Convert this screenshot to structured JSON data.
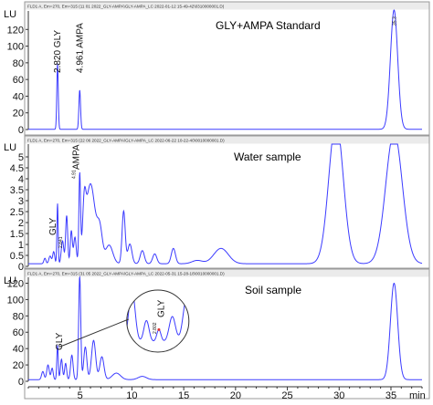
{
  "chart_data": [
    {
      "type": "line",
      "header": "FLD1 A, Em=270, Em=315 (11 01 2022_GLY-AMPA\\GLY-AMPA_LC 2022-01-12 15-49-42\\0310000001.D)",
      "title": "GLY+AMPA Standard",
      "ylabel": "LU",
      "yticks": [
        0,
        20,
        40,
        60,
        80,
        100,
        120
      ],
      "ylim": [
        0,
        140
      ],
      "xlim": [
        0,
        38
      ],
      "peaks": [
        {
          "t": 2.82,
          "h": 79,
          "w": 0.07
        },
        {
          "t": 4.961,
          "h": 47,
          "w": 0.08
        },
        {
          "t": 35.3,
          "h": 143,
          "w": 0.35
        }
      ],
      "peak_labels": [
        {
          "text": "2.820 GLY",
          "t": 2.82
        },
        {
          "text": "4.961 AMPA",
          "t": 4.961
        }
      ],
      "apex_label": "35.3"
    },
    {
      "type": "line",
      "header": "FLD1 A, Em=270, Em=315 (22 06 2022_GLY-AMPA\\GLY-AMPA_LC 2022-06-22 10-22-40\\0010000001.D)",
      "title": "Water sample",
      "ylabel": "LU",
      "yticks": [
        0,
        0.5,
        1,
        1.5,
        2,
        2.5,
        3,
        3.5,
        4,
        4.5,
        5
      ],
      "ylim": [
        0,
        5.5
      ],
      "xlim": [
        0,
        38
      ],
      "peaks": [
        {
          "t": 1.6,
          "h": 0.25,
          "w": 0.1
        },
        {
          "t": 2.1,
          "h": 0.35,
          "w": 0.12
        },
        {
          "t": 2.45,
          "h": 0.55,
          "w": 0.1
        },
        {
          "t": 2.82,
          "h": 2.75,
          "w": 0.06
        },
        {
          "t": 3.3,
          "h": 1.05,
          "w": 0.12
        },
        {
          "t": 3.7,
          "h": 2.2,
          "w": 0.1
        },
        {
          "t": 4.15,
          "h": 1.5,
          "w": 0.1
        },
        {
          "t": 4.5,
          "h": 1.2,
          "w": 0.12
        },
        {
          "t": 4.96,
          "h": 3.9,
          "w": 0.08
        },
        {
          "t": 5.4,
          "h": 1.9,
          "w": 0.15
        },
        {
          "t": 6.0,
          "h": 3.65,
          "w": 0.45
        },
        {
          "t": 6.9,
          "h": 1.4,
          "w": 0.25
        },
        {
          "t": 7.8,
          "h": 0.85,
          "w": 0.35
        },
        {
          "t": 9.2,
          "h": 2.4,
          "w": 0.15
        },
        {
          "t": 9.8,
          "h": 0.9,
          "w": 0.2
        },
        {
          "t": 11.0,
          "h": 0.6,
          "w": 0.2
        },
        {
          "t": 12.2,
          "h": 0.45,
          "w": 0.2
        },
        {
          "t": 14.0,
          "h": 0.7,
          "w": 0.2
        },
        {
          "t": 16.3,
          "h": 0.15,
          "w": 0.5
        },
        {
          "t": 18.6,
          "h": 0.7,
          "w": 0.7
        },
        {
          "t": 29.7,
          "h": 6.5,
          "w": 0.7
        },
        {
          "t": 35.3,
          "h": 6.0,
          "w": 0.8
        }
      ],
      "peak_labels": [
        {
          "text": "GLY",
          "t": 2.82
        },
        {
          "text": "AMPA",
          "t": 4.96
        }
      ],
      "small_labels": [
        "2.841",
        "4.91"
      ]
    },
    {
      "type": "line",
      "header": "FLD1 A, Em=270, Em=315 (31 05 2022_GLY-AMPA\\GLY-AMPA_LC 2022-05-31 15-28-18\\0010000001.D)",
      "title": "Soil sample",
      "ylabel": "LU",
      "yticks": [
        0,
        20,
        40,
        60,
        80,
        100,
        120
      ],
      "ylim": [
        0,
        125
      ],
      "xlim": [
        0,
        38
      ],
      "xticks": [
        5,
        10,
        15,
        20,
        25,
        30,
        35
      ],
      "xlabel": "min",
      "peaks": [
        {
          "t": 1.4,
          "h": 10,
          "w": 0.12
        },
        {
          "t": 1.9,
          "h": 18,
          "w": 0.12
        },
        {
          "t": 2.3,
          "h": 14,
          "w": 0.1
        },
        {
          "t": 2.82,
          "h": 42,
          "w": 0.07
        },
        {
          "t": 3.2,
          "h": 25,
          "w": 0.1
        },
        {
          "t": 3.6,
          "h": 20,
          "w": 0.1
        },
        {
          "t": 4.2,
          "h": 30,
          "w": 0.12
        },
        {
          "t": 4.96,
          "h": 127,
          "w": 0.1
        },
        {
          "t": 5.5,
          "h": 40,
          "w": 0.15
        },
        {
          "t": 6.3,
          "h": 48,
          "w": 0.2
        },
        {
          "t": 7.1,
          "h": 28,
          "w": 0.2
        },
        {
          "t": 8.5,
          "h": 8,
          "w": 0.4
        },
        {
          "t": 11.0,
          "h": 4,
          "w": 0.4
        },
        {
          "t": 35.3,
          "h": 118,
          "w": 0.35
        }
      ],
      "peak_labels": [
        {
          "text": "GLY",
          "t": 2.82
        }
      ],
      "inset": {
        "label": "GLY",
        "value_label": "2.802",
        "centre_t": 12.5,
        "centre_y": 72,
        "radius_t": 3.0,
        "zoom_peaks": [
          {
            "t": 10.0,
            "h": 105,
            "w": 0.3
          },
          {
            "t": 11.4,
            "h": 42,
            "w": 0.25
          },
          {
            "t": 12.6,
            "h": 24,
            "w": 0.2
          },
          {
            "t": 13.9,
            "h": 50,
            "w": 0.3
          },
          {
            "t": 15.3,
            "h": 90,
            "w": 0.35
          }
        ],
        "zoom_baseline": 10
      }
    }
  ]
}
